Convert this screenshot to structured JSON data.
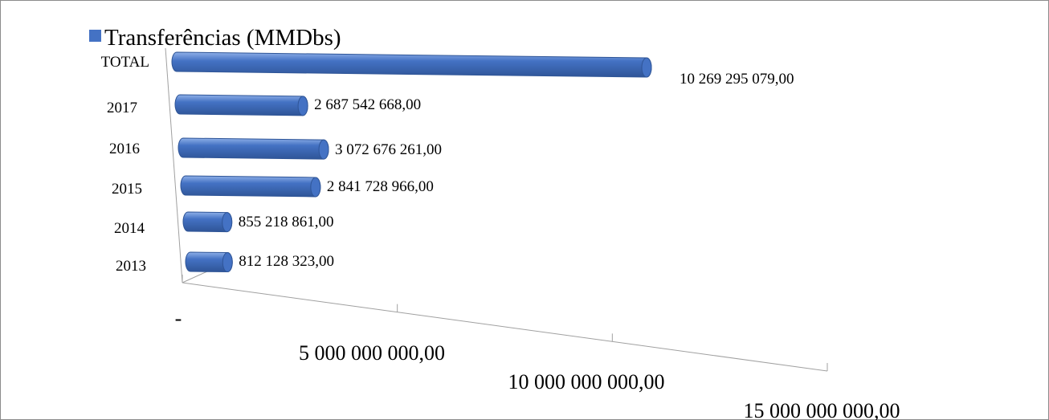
{
  "chart_data": {
    "type": "bar",
    "orientation": "horizontal",
    "style": "3d-cylinder",
    "legend": {
      "position": "top-left",
      "entries": [
        "Transferências (MMDbs)"
      ]
    },
    "categories": [
      "2013",
      "2014",
      "2015",
      "2016",
      "2017",
      "TOTAL"
    ],
    "series": [
      {
        "name": "Transferências (MMDbs)",
        "values": [
          812128323,
          855218861,
          2841728966,
          3072676261,
          2687542668,
          10269295079
        ],
        "labels": [
          "812 128 323,00",
          "855 218 861,00",
          "2 841 728 966,00",
          "3 072 676 261,00",
          "2 687 542 668,00",
          "10 269 295 079,00"
        ]
      }
    ],
    "x_ticks": [
      "-",
      "5 000 000 000,00",
      "10 000 000 000,00",
      "15 000 000 000,00"
    ],
    "xlim": [
      0,
      15000000000
    ],
    "grid": false,
    "colors": {
      "bar_main": "#4472c4",
      "bar_light": "#8fb0e8",
      "bar_dark": "#2f5597"
    }
  }
}
